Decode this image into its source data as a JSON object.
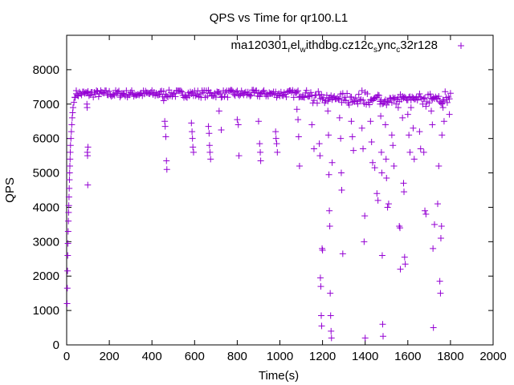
{
  "chart_data": {
    "type": "scatter",
    "title": "QPS vs Time for qr100.L1",
    "xlabel": "Time(s)",
    "ylabel": "QPS",
    "xlim": [
      0,
      2000
    ],
    "ylim": [
      0,
      9000
    ],
    "xticks": [
      "0",
      "200",
      "400",
      "600",
      "800",
      "1000",
      "1200",
      "1400",
      "1600",
      "1800",
      "2000"
    ],
    "yticks": [
      "0",
      "1000",
      "2000",
      "3000",
      "4000",
      "5000",
      "6000",
      "7000",
      "8000"
    ],
    "grid": false,
    "legend_position": "top-right",
    "marker": "+",
    "series": [
      {
        "name": "ma120301_rel_withdbg.cz12c_sync_c32r128",
        "color": "#9400d3",
        "plateau_value": 7300,
        "points": [
          [
            2,
            1200
          ],
          [
            3,
            1650
          ],
          [
            4,
            2150
          ],
          [
            5,
            2600
          ],
          [
            6,
            2950
          ],
          [
            7,
            3300
          ],
          [
            8,
            3600
          ],
          [
            9,
            3850
          ],
          [
            10,
            4050
          ],
          [
            11,
            4300
          ],
          [
            12,
            4550
          ],
          [
            13,
            4800
          ],
          [
            14,
            5000
          ],
          [
            15,
            5200
          ],
          [
            16,
            5400
          ],
          [
            17,
            5600
          ],
          [
            18,
            5800
          ],
          [
            20,
            6000
          ],
          [
            22,
            6200
          ],
          [
            24,
            6400
          ],
          [
            26,
            6600
          ],
          [
            28,
            6750
          ],
          [
            30,
            6900
          ],
          [
            34,
            7050
          ],
          [
            38,
            7200
          ],
          [
            45,
            7300
          ],
          [
            95,
            7000
          ],
          [
            96,
            6900
          ],
          [
            97,
            5600
          ],
          [
            98,
            5500
          ],
          [
            99,
            4650
          ],
          [
            100,
            5750
          ],
          [
            455,
            7100
          ],
          [
            460,
            6500
          ],
          [
            462,
            6350
          ],
          [
            465,
            6050
          ],
          [
            468,
            5350
          ],
          [
            470,
            5100
          ],
          [
            585,
            6450
          ],
          [
            588,
            6200
          ],
          [
            590,
            6000
          ],
          [
            592,
            5750
          ],
          [
            595,
            5600
          ],
          [
            665,
            6350
          ],
          [
            668,
            6150
          ],
          [
            670,
            5800
          ],
          [
            672,
            5600
          ],
          [
            675,
            5400
          ],
          [
            715,
            6800
          ],
          [
            725,
            6250
          ],
          [
            800,
            6550
          ],
          [
            805,
            6400
          ],
          [
            808,
            5500
          ],
          [
            900,
            6500
          ],
          [
            905,
            5850
          ],
          [
            908,
            5600
          ],
          [
            910,
            5350
          ],
          [
            980,
            6200
          ],
          [
            982,
            6000
          ],
          [
            985,
            5850
          ],
          [
            988,
            5600
          ],
          [
            1080,
            6850
          ],
          [
            1085,
            6550
          ],
          [
            1088,
            6050
          ],
          [
            1092,
            5200
          ],
          [
            1150,
            6400
          ],
          [
            1160,
            5700
          ],
          [
            1185,
            5850
          ],
          [
            1188,
            5500
          ],
          [
            1190,
            1950
          ],
          [
            1192,
            1700
          ],
          [
            1194,
            850
          ],
          [
            1196,
            550
          ],
          [
            1198,
            2800
          ],
          [
            1200,
            2750
          ],
          [
            1225,
            6800
          ],
          [
            1228,
            6100
          ],
          [
            1230,
            4950
          ],
          [
            1232,
            3900
          ],
          [
            1234,
            3450
          ],
          [
            1236,
            1500
          ],
          [
            1238,
            850
          ],
          [
            1240,
            400
          ],
          [
            1242,
            200
          ],
          [
            1245,
            5300
          ],
          [
            1280,
            6600
          ],
          [
            1285,
            6000
          ],
          [
            1288,
            5000
          ],
          [
            1290,
            4500
          ],
          [
            1295,
            2650
          ],
          [
            1335,
            6500
          ],
          [
            1340,
            6050
          ],
          [
            1345,
            5650
          ],
          [
            1385,
            6300
          ],
          [
            1390,
            5700
          ],
          [
            1395,
            3000
          ],
          [
            1398,
            3750
          ],
          [
            1400,
            200
          ],
          [
            1425,
            6500
          ],
          [
            1430,
            5900
          ],
          [
            1435,
            5300
          ],
          [
            1445,
            5150
          ],
          [
            1455,
            4400
          ],
          [
            1460,
            4200
          ],
          [
            1470,
            7000
          ],
          [
            1473,
            6650
          ],
          [
            1476,
            5600
          ],
          [
            1478,
            5000
          ],
          [
            1480,
            2600
          ],
          [
            1482,
            600
          ],
          [
            1484,
            250
          ],
          [
            1495,
            6400
          ],
          [
            1498,
            5400
          ],
          [
            1500,
            4850
          ],
          [
            1505,
            4000
          ],
          [
            1510,
            4100
          ],
          [
            1525,
            6100
          ],
          [
            1530,
            5800
          ],
          [
            1535,
            5200
          ],
          [
            1555,
            6900
          ],
          [
            1560,
            3450
          ],
          [
            1563,
            3400
          ],
          [
            1565,
            2200
          ],
          [
            1575,
            6600
          ],
          [
            1580,
            4700
          ],
          [
            1582,
            4450
          ],
          [
            1585,
            2550
          ],
          [
            1588,
            2350
          ],
          [
            1600,
            6700
          ],
          [
            1605,
            6100
          ],
          [
            1610,
            5600
          ],
          [
            1615,
            6900
          ],
          [
            1625,
            6300
          ],
          [
            1630,
            5400
          ],
          [
            1655,
            6200
          ],
          [
            1660,
            5700
          ],
          [
            1675,
            5600
          ],
          [
            1680,
            3900
          ],
          [
            1685,
            3800
          ],
          [
            1710,
            6800
          ],
          [
            1715,
            6400
          ],
          [
            1718,
            2800
          ],
          [
            1720,
            500
          ],
          [
            1725,
            3500
          ],
          [
            1740,
            4100
          ],
          [
            1745,
            5200
          ],
          [
            1750,
            1850
          ],
          [
            1753,
            1500
          ],
          [
            1755,
            3100
          ],
          [
            1758,
            3450
          ],
          [
            1760,
            6100
          ],
          [
            1765,
            6900
          ],
          [
            1770,
            6500
          ],
          [
            1795,
            6700
          ]
        ]
      }
    ]
  }
}
